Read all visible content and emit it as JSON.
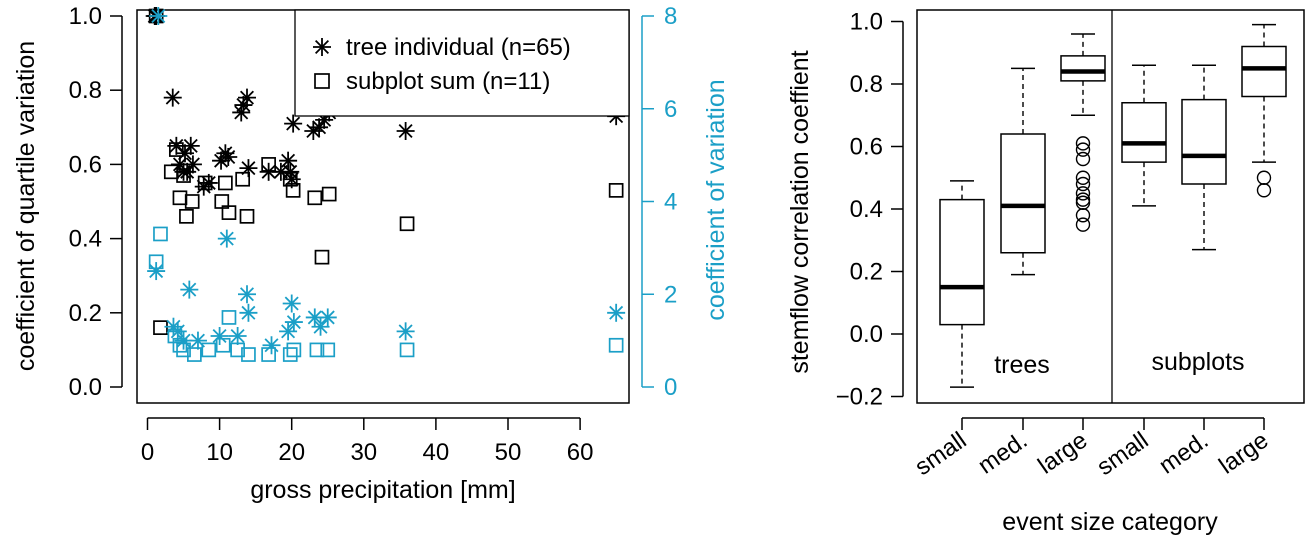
{
  "colors": {
    "black": "#000000",
    "blue": "#1b9fc7"
  },
  "chart_data": [
    {
      "type": "scatter",
      "xlabel": "gross precipitation [mm]",
      "ylabel": "coefficient of quartile variation",
      "y2label": "coefficient of variation",
      "xlim": [
        0,
        67
      ],
      "ylim": [
        0,
        1.0
      ],
      "y2lim": [
        0,
        8
      ],
      "xticks": [
        0,
        10,
        20,
        30,
        40,
        50,
        60
      ],
      "yticks": [
        0.0,
        0.2,
        0.4,
        0.6,
        0.8,
        1.0
      ],
      "y2ticks": [
        0,
        2,
        4,
        6,
        8
      ],
      "xtick_labels": [
        "0",
        "10",
        "20",
        "30",
        "40",
        "50",
        "60"
      ],
      "ytick_labels": [
        "0.0",
        "0.2",
        "0.4",
        "0.6",
        "0.8",
        "1.0"
      ],
      "y2tick_labels": [
        "0",
        "2",
        "4",
        "6",
        "8"
      ],
      "legend": {
        "position": "top-right",
        "entries": [
          {
            "label": "tree individual (n=65)",
            "marker": "asterisk"
          },
          {
            "label": "subplot sum (n=11)",
            "marker": "square"
          }
        ]
      },
      "series": [
        {
          "name": "tree individual (n=65)",
          "marker": "asterisk",
          "color": "black",
          "axis": "left",
          "points": [
            [
              1.0,
              1.0
            ],
            [
              1.2,
              1.0
            ],
            [
              3.5,
              0.78
            ],
            [
              4.0,
              0.65
            ],
            [
              4.5,
              0.6
            ],
            [
              5.0,
              0.58
            ],
            [
              5.2,
              0.63
            ],
            [
              5.5,
              0.58
            ],
            [
              6.0,
              0.65
            ],
            [
              6.3,
              0.6
            ],
            [
              7.8,
              0.54
            ],
            [
              8.5,
              0.55
            ],
            [
              10.2,
              0.61
            ],
            [
              10.8,
              0.63
            ],
            [
              11.2,
              0.62
            ],
            [
              13.0,
              0.74
            ],
            [
              13.3,
              0.76
            ],
            [
              13.8,
              0.78
            ],
            [
              14.0,
              0.59
            ],
            [
              16.8,
              0.58
            ],
            [
              18.5,
              0.58
            ],
            [
              19.5,
              0.61
            ],
            [
              19.8,
              0.58
            ],
            [
              20.0,
              0.56
            ],
            [
              20.2,
              0.71
            ],
            [
              23.0,
              0.69
            ],
            [
              23.8,
              0.7
            ],
            [
              24.5,
              0.72
            ],
            [
              25.2,
              0.74
            ],
            [
              35.8,
              0.69
            ],
            [
              65.0,
              0.73
            ]
          ]
        },
        {
          "name": "subplot sum (n=11)",
          "marker": "square",
          "color": "black",
          "axis": "left",
          "points": [
            [
              1.2,
              1.0
            ],
            [
              1.8,
              0.16
            ],
            [
              3.3,
              0.58
            ],
            [
              4.0,
              0.64
            ],
            [
              4.5,
              0.51
            ],
            [
              5.0,
              0.57
            ],
            [
              5.4,
              0.46
            ],
            [
              6.2,
              0.5
            ],
            [
              8.0,
              0.55
            ],
            [
              10.3,
              0.5
            ],
            [
              10.8,
              0.55
            ],
            [
              11.3,
              0.47
            ],
            [
              13.2,
              0.56
            ],
            [
              13.8,
              0.46
            ],
            [
              16.8,
              0.6
            ],
            [
              19.8,
              0.56
            ],
            [
              20.2,
              0.53
            ],
            [
              23.2,
              0.51
            ],
            [
              24.2,
              0.35
            ],
            [
              25.2,
              0.52
            ],
            [
              36.0,
              0.44
            ],
            [
              65.0,
              0.53
            ]
          ]
        },
        {
          "name": "",
          "marker": "asterisk",
          "color": "blue",
          "axis": "right",
          "points": [
            [
              1.5,
              8.0
            ],
            [
              1.2,
              2.5
            ],
            [
              3.6,
              1.3
            ],
            [
              4.2,
              1.2
            ],
            [
              5.0,
              1.0
            ],
            [
              5.8,
              2.1
            ],
            [
              7.0,
              1.0
            ],
            [
              10.0,
              1.1
            ],
            [
              11.0,
              3.2
            ],
            [
              12.5,
              1.1
            ],
            [
              13.8,
              2.0
            ],
            [
              14.0,
              1.6
            ],
            [
              17.2,
              0.9
            ],
            [
              19.5,
              1.2
            ],
            [
              20.0,
              1.8
            ],
            [
              20.3,
              1.4
            ],
            [
              23.2,
              1.5
            ],
            [
              24.0,
              1.3
            ],
            [
              25.0,
              1.5
            ],
            [
              35.8,
              1.2
            ],
            [
              65.0,
              1.6
            ]
          ]
        },
        {
          "name": "",
          "marker": "square",
          "color": "blue",
          "axis": "right",
          "points": [
            [
              1.2,
              2.7
            ],
            [
              1.8,
              3.3
            ],
            [
              3.8,
              1.1
            ],
            [
              4.5,
              0.9
            ],
            [
              5.0,
              0.8
            ],
            [
              6.5,
              0.7
            ],
            [
              8.5,
              0.8
            ],
            [
              10.5,
              0.9
            ],
            [
              11.3,
              1.5
            ],
            [
              12.5,
              0.8
            ],
            [
              14.0,
              0.7
            ],
            [
              16.8,
              0.7
            ],
            [
              19.8,
              0.7
            ],
            [
              20.3,
              0.8
            ],
            [
              23.5,
              0.8
            ],
            [
              25.0,
              0.8
            ],
            [
              36.0,
              0.8
            ],
            [
              65.0,
              0.9
            ]
          ]
        }
      ]
    },
    {
      "type": "box",
      "xlabel": "event size category",
      "ylabel": "stemflow correlation coeffient",
      "ylim": [
        -0.2,
        1.0
      ],
      "yticks": [
        -0.2,
        0.0,
        0.2,
        0.4,
        0.6,
        0.8,
        1.0
      ],
      "ytick_labels": [
        "−0.2",
        "0.0",
        "0.2",
        "0.4",
        "0.6",
        "0.8",
        "1.0"
      ],
      "categories": [
        "small",
        "med.",
        "large",
        "small",
        "med.",
        "large"
      ],
      "group_labels": [
        "trees",
        "subplots"
      ],
      "boxes": [
        {
          "category": "small",
          "group": "trees",
          "whisker_low": -0.17,
          "q1": 0.03,
          "median": 0.15,
          "q3": 0.43,
          "whisker_high": 0.49,
          "outliers": []
        },
        {
          "category": "med.",
          "group": "trees",
          "whisker_low": 0.19,
          "q1": 0.26,
          "median": 0.41,
          "q3": 0.64,
          "whisker_high": 0.85,
          "outliers": []
        },
        {
          "category": "large",
          "group": "trees",
          "whisker_low": 0.7,
          "q1": 0.81,
          "median": 0.84,
          "q3": 0.89,
          "whisker_high": 0.96,
          "outliers": [
            0.61,
            0.59,
            0.56,
            0.5,
            0.48,
            0.45,
            0.43,
            0.42,
            0.38,
            0.35
          ]
        },
        {
          "category": "small",
          "group": "subplots",
          "whisker_low": 0.41,
          "q1": 0.55,
          "median": 0.61,
          "q3": 0.74,
          "whisker_high": 0.86,
          "outliers": []
        },
        {
          "category": "med.",
          "group": "subplots",
          "whisker_low": 0.27,
          "q1": 0.48,
          "median": 0.57,
          "q3": 0.75,
          "whisker_high": 0.86,
          "outliers": []
        },
        {
          "category": "large",
          "group": "subplots",
          "whisker_low": 0.55,
          "q1": 0.76,
          "median": 0.85,
          "q3": 0.92,
          "whisker_high": 0.99,
          "outliers": [
            0.5,
            0.46
          ]
        }
      ]
    }
  ]
}
